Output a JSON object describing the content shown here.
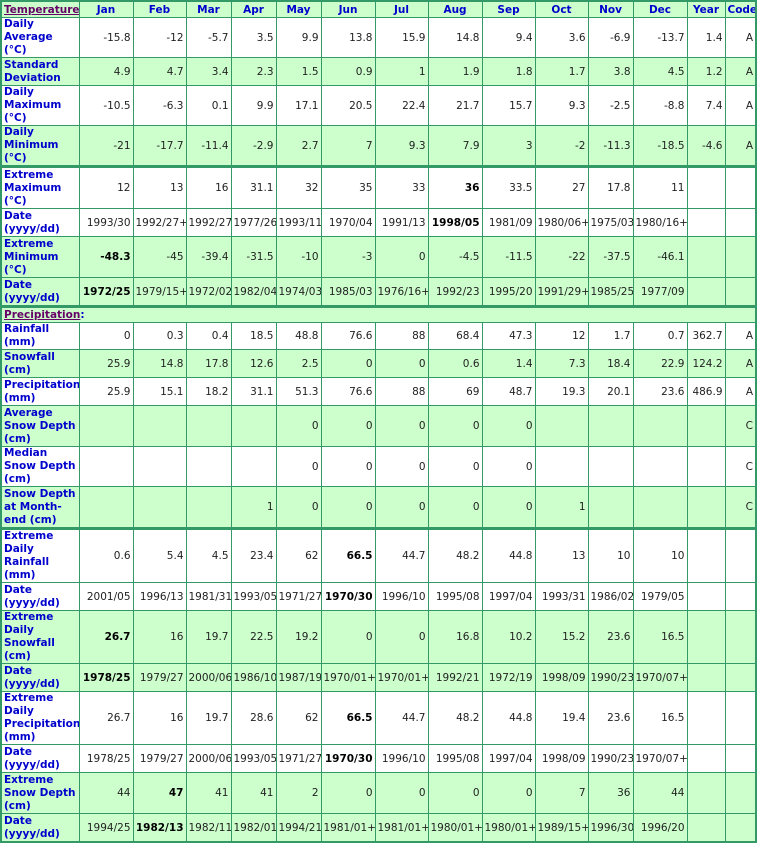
{
  "header": {
    "section_label": "Temperature",
    "columns": [
      "Jan",
      "Feb",
      "Mar",
      "Apr",
      "May",
      "Jun",
      "Jul",
      "Aug",
      "Sep",
      "Oct",
      "Nov",
      "Dec",
      "Year",
      "Code"
    ]
  },
  "colors": {
    "border": "#339966",
    "shaded_row": "#ccffcc",
    "label_text": "#0000cc",
    "section_text": "#660066"
  },
  "temperature": {
    "rows": [
      {
        "label": "Daily Average (°C)",
        "values": [
          "-15.8",
          "-12",
          "-5.7",
          "3.5",
          "9.9",
          "13.8",
          "15.9",
          "14.8",
          "9.4",
          "3.6",
          "-6.9",
          "-13.7",
          "1.4",
          "A"
        ],
        "bold": [],
        "shaded": false
      },
      {
        "label": "Standard Deviation",
        "values": [
          "4.9",
          "4.7",
          "3.4",
          "2.3",
          "1.5",
          "0.9",
          "1",
          "1.9",
          "1.8",
          "1.7",
          "3.8",
          "4.5",
          "1.2",
          "A"
        ],
        "bold": [],
        "shaded": true
      },
      {
        "label": "Daily Maximum (°C)",
        "values": [
          "-10.5",
          "-6.3",
          "0.1",
          "9.9",
          "17.1",
          "20.5",
          "22.4",
          "21.7",
          "15.7",
          "9.3",
          "-2.5",
          "-8.8",
          "7.4",
          "A"
        ],
        "bold": [],
        "shaded": false
      },
      {
        "label": "Daily Minimum (°C)",
        "values": [
          "-21",
          "-17.7",
          "-11.4",
          "-2.9",
          "2.7",
          "7",
          "9.3",
          "7.9",
          "3",
          "-2",
          "-11.3",
          "-18.5",
          "-4.6",
          "A"
        ],
        "bold": [],
        "shaded": true
      },
      {
        "label": "Extreme Maximum (°C)",
        "values": [
          "12",
          "13",
          "16",
          "31.1",
          "32",
          "35",
          "33",
          "36",
          "33.5",
          "27",
          "17.8",
          "11",
          "",
          ""
        ],
        "bold": [
          7
        ],
        "shaded": false,
        "thick": true
      },
      {
        "label": "Date (yyyy/dd)",
        "values": [
          "1993/30",
          "1992/27+",
          "1992/27",
          "1977/26",
          "1993/11",
          "1970/04",
          "1991/13",
          "1998/05",
          "1981/09",
          "1980/06+",
          "1975/03",
          "1980/16+",
          "",
          ""
        ],
        "bold": [
          7
        ],
        "shaded": false
      },
      {
        "label": "Extreme Minimum (°C)",
        "values": [
          "-48.3",
          "-45",
          "-39.4",
          "-31.5",
          "-10",
          "-3",
          "0",
          "-4.5",
          "-11.5",
          "-22",
          "-37.5",
          "-46.1",
          "",
          ""
        ],
        "bold": [
          0
        ],
        "shaded": true
      },
      {
        "label": "Date (yyyy/dd)",
        "values": [
          "1972/25",
          "1979/15+",
          "1972/02",
          "1982/04",
          "1974/03",
          "1985/03",
          "1976/16+",
          "1992/23",
          "1995/20",
          "1991/29+",
          "1985/25",
          "1977/09",
          "",
          ""
        ],
        "bold": [
          0
        ],
        "shaded": true
      }
    ]
  },
  "precipitation": {
    "section_label": "Precipitation",
    "rows": [
      {
        "label": "Rainfall (mm)",
        "values": [
          "0",
          "0.3",
          "0.4",
          "18.5",
          "48.8",
          "76.6",
          "88",
          "68.4",
          "47.3",
          "12",
          "1.7",
          "0.7",
          "362.7",
          "A"
        ],
        "bold": [],
        "shaded": false
      },
      {
        "label": "Snowfall (cm)",
        "values": [
          "25.9",
          "14.8",
          "17.8",
          "12.6",
          "2.5",
          "0",
          "0",
          "0.6",
          "1.4",
          "7.3",
          "18.4",
          "22.9",
          "124.2",
          "A"
        ],
        "bold": [],
        "shaded": true
      },
      {
        "label": "Precipitation (mm)",
        "values": [
          "25.9",
          "15.1",
          "18.2",
          "31.1",
          "51.3",
          "76.6",
          "88",
          "69",
          "48.7",
          "19.3",
          "20.1",
          "23.6",
          "486.9",
          "A"
        ],
        "bold": [],
        "shaded": false
      },
      {
        "label": "Average Snow Depth (cm)",
        "values": [
          "",
          "",
          "",
          "",
          "0",
          "0",
          "0",
          "0",
          "0",
          "",
          "",
          "",
          "",
          "C"
        ],
        "bold": [],
        "shaded": true
      },
      {
        "label": "Median Snow Depth (cm)",
        "values": [
          "",
          "",
          "",
          "",
          "0",
          "0",
          "0",
          "0",
          "0",
          "",
          "",
          "",
          "",
          "C"
        ],
        "bold": [],
        "shaded": false
      },
      {
        "label": "Snow Depth at Month-end (cm)",
        "values": [
          "",
          "",
          "",
          "1",
          "0",
          "0",
          "0",
          "0",
          "0",
          "1",
          "",
          "",
          "",
          "C"
        ],
        "bold": [],
        "shaded": true
      },
      {
        "label": "Extreme Daily Rainfall (mm)",
        "values": [
          "0.6",
          "5.4",
          "4.5",
          "23.4",
          "62",
          "66.5",
          "44.7",
          "48.2",
          "44.8",
          "13",
          "10",
          "10",
          "",
          ""
        ],
        "bold": [
          5
        ],
        "shaded": false,
        "thick": true
      },
      {
        "label": "Date (yyyy/dd)",
        "values": [
          "2001/05",
          "1996/13",
          "1981/31",
          "1993/05",
          "1971/27",
          "1970/30",
          "1996/10",
          "1995/08",
          "1997/04",
          "1993/31",
          "1986/02",
          "1979/05",
          "",
          ""
        ],
        "bold": [
          5
        ],
        "shaded": false
      },
      {
        "label": "Extreme Daily Snowfall (cm)",
        "values": [
          "26.7",
          "16",
          "19.7",
          "22.5",
          "19.2",
          "0",
          "0",
          "16.8",
          "10.2",
          "15.2",
          "23.6",
          "16.5",
          "",
          ""
        ],
        "bold": [
          0
        ],
        "shaded": true
      },
      {
        "label": "Date (yyyy/dd)",
        "values": [
          "1978/25",
          "1979/27",
          "2000/06",
          "1986/10",
          "1987/19",
          "1970/01+",
          "1970/01+",
          "1992/21",
          "1972/19",
          "1998/09",
          "1990/23",
          "1970/07+",
          "",
          ""
        ],
        "bold": [
          0
        ],
        "shaded": true
      },
      {
        "label": "Extreme Daily Precipitation (mm)",
        "values": [
          "26.7",
          "16",
          "19.7",
          "28.6",
          "62",
          "66.5",
          "44.7",
          "48.2",
          "44.8",
          "19.4",
          "23.6",
          "16.5",
          "",
          ""
        ],
        "bold": [
          5
        ],
        "shaded": false
      },
      {
        "label": "Date (yyyy/dd)",
        "values": [
          "1978/25",
          "1979/27",
          "2000/06",
          "1993/05",
          "1971/27",
          "1970/30",
          "1996/10",
          "1995/08",
          "1997/04",
          "1998/09",
          "1990/23",
          "1970/07+",
          "",
          ""
        ],
        "bold": [
          5
        ],
        "shaded": false
      },
      {
        "label": "Extreme Snow Depth (cm)",
        "values": [
          "44",
          "47",
          "41",
          "41",
          "2",
          "0",
          "0",
          "0",
          "0",
          "7",
          "36",
          "44",
          "",
          ""
        ],
        "bold": [
          1
        ],
        "shaded": true
      },
      {
        "label": "Date (yyyy/dd)",
        "values": [
          "1994/25",
          "1982/13",
          "1982/11",
          "1982/01",
          "1994/21",
          "1981/01+",
          "1981/01+",
          "1980/01+",
          "1980/01+",
          "1989/15+",
          "1996/30",
          "1996/20",
          "",
          ""
        ],
        "bold": [
          1
        ],
        "shaded": true
      }
    ]
  }
}
